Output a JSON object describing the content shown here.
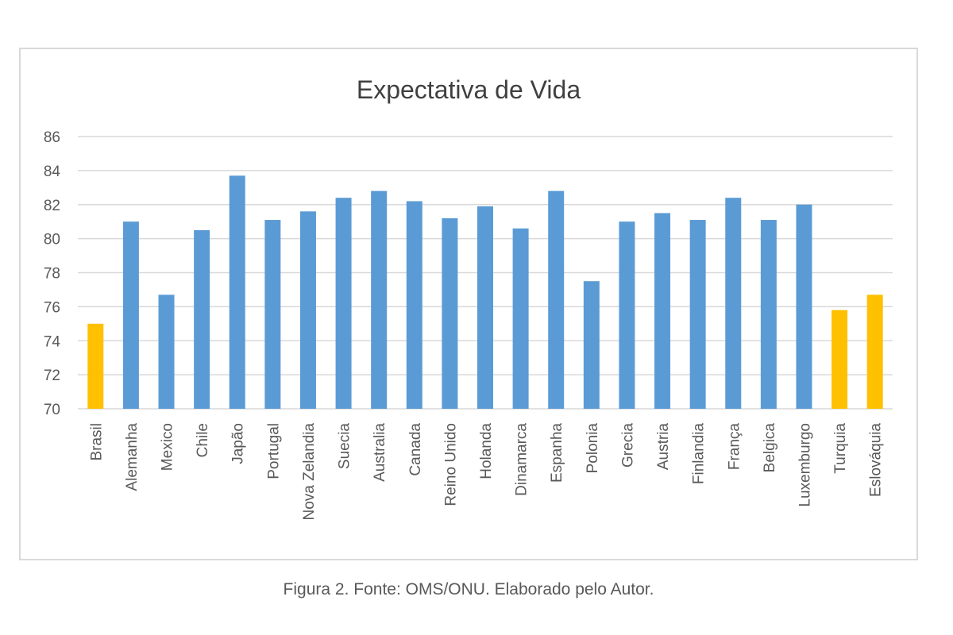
{
  "chart_data": {
    "type": "bar",
    "title": "Expectativa de Vida",
    "xlabel": "",
    "ylabel": "",
    "categories": [
      "Brasil",
      "Alemanha",
      "Mexico",
      "Chile",
      "Japão",
      "Portugal",
      "Nova Zelandia",
      "Suecia",
      "Australia",
      "Canada",
      "Reino Unido",
      "Holanda",
      "Dinamarca",
      "Espanha",
      "Polonia",
      "Grecia",
      "Austria",
      "Finlandia",
      "França",
      "Belgica",
      "Luxemburgo",
      "Turquia",
      "Eslováquia"
    ],
    "values": [
      75.0,
      81.0,
      76.7,
      80.5,
      83.7,
      81.1,
      81.6,
      82.4,
      82.8,
      82.2,
      81.2,
      81.9,
      80.6,
      82.8,
      77.5,
      81.0,
      81.5,
      81.1,
      82.4,
      81.1,
      82.0,
      75.8,
      76.7
    ],
    "highlighted": [
      true,
      false,
      false,
      false,
      false,
      false,
      false,
      false,
      false,
      false,
      false,
      false,
      false,
      false,
      false,
      false,
      false,
      false,
      false,
      false,
      false,
      true,
      true
    ],
    "ylim": [
      70,
      86
    ],
    "yticks": [
      70,
      72,
      74,
      76,
      78,
      80,
      82,
      84,
      86
    ],
    "grid": true,
    "legend": "none",
    "colors": {
      "default": "#5b9bd5",
      "highlight": "#ffc000",
      "grid": "#d9d9d9",
      "text": "#595959"
    }
  },
  "caption": "Figura 2. Fonte: OMS/ONU. Elaborado pelo Autor."
}
